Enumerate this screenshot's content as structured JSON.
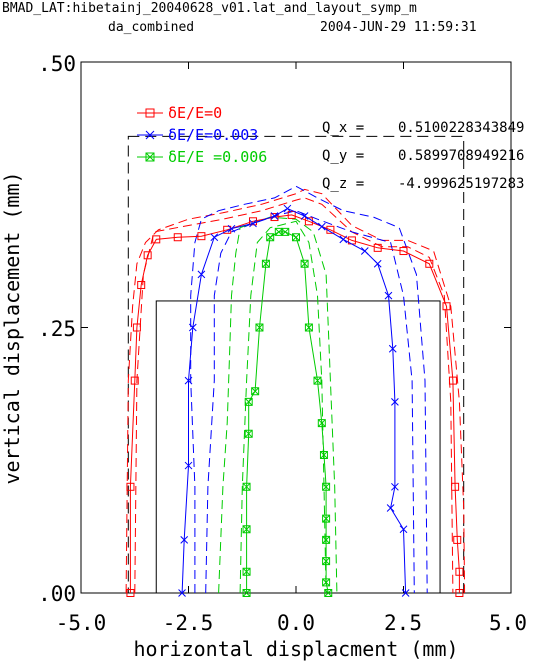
{
  "header": {
    "line1": "BMAD_LAT:hibetainj_20040628_v01.lat_and_layout_symp_m",
    "subtitle": "da_combined",
    "date": "2004-JUN-29  11:59:31"
  },
  "annotations": [
    {
      "label": "Q_x  =",
      "value": "0.5100228343849"
    },
    {
      "label": "Q_y  =",
      "value": "0.5899708949216"
    },
    {
      "label": "Q_z  =",
      "value": "-4.999625197283"
    }
  ],
  "colors": {
    "red": "#ff0000",
    "blue": "#0000ff",
    "green": "#00cc00",
    "black": "#000000"
  },
  "chart_data": {
    "type": "line",
    "xlabel": "horizontal displacment (mm)",
    "ylabel": "vertical displacement (mm)",
    "xlim": [
      -5.0,
      5.0
    ],
    "ylim": [
      0.0,
      0.5
    ],
    "x_ticks": [
      "-5.0",
      "-2.5",
      "0.0",
      "2.5",
      "5.0"
    ],
    "y_ticks": [
      ".00",
      ".25",
      ".50"
    ],
    "grid": false,
    "legend_position": "top-left",
    "series": [
      {
        "name": "δE/E=0",
        "color": "#ff0000",
        "marker": "square",
        "x": [
          -3.85,
          -3.85,
          -3.75,
          -3.7,
          -3.6,
          -3.45,
          -3.25,
          -2.75,
          -2.2,
          -1.6,
          -1.0,
          -0.5,
          -0.1,
          0.3,
          0.8,
          1.3,
          1.9,
          2.5,
          3.1,
          3.5,
          3.65,
          3.7,
          3.75,
          3.8,
          3.8
        ],
        "y": [
          0.0,
          0.1,
          0.2,
          0.25,
          0.29,
          0.318,
          0.333,
          0.335,
          0.336,
          0.342,
          0.35,
          0.354,
          0.356,
          0.35,
          0.342,
          0.332,
          0.325,
          0.322,
          0.31,
          0.27,
          0.2,
          0.1,
          0.05,
          0.02,
          0.0
        ]
      },
      {
        "name": "δE/E=0.003",
        "color": "#0000ff",
        "marker": "x",
        "x": [
          -2.65,
          -2.6,
          -2.5,
          -2.5,
          -2.4,
          -2.2,
          -1.9,
          -1.5,
          -1.0,
          -0.5,
          -0.2,
          0.2,
          0.6,
          1.1,
          1.6,
          1.9,
          2.15,
          2.25,
          2.3,
          2.3,
          2.2,
          2.5,
          2.55
        ],
        "y": [
          0.0,
          0.05,
          0.12,
          0.2,
          0.25,
          0.3,
          0.335,
          0.343,
          0.348,
          0.355,
          0.362,
          0.355,
          0.345,
          0.333,
          0.322,
          0.31,
          0.28,
          0.23,
          0.18,
          0.1,
          0.08,
          0.06,
          0.0
        ]
      },
      {
        "name": "δE/E =0.006",
        "color": "#00cc00",
        "marker": "boxed-x",
        "x": [
          -1.15,
          -1.15,
          -1.15,
          -1.15,
          -1.1,
          -1.1,
          -0.95,
          -0.85,
          -0.7,
          -0.6,
          -0.4,
          -0.25,
          0.0,
          0.2,
          0.3,
          0.5,
          0.6,
          0.65,
          0.7,
          0.7,
          0.7,
          0.7,
          0.7,
          0.75
        ],
        "y": [
          0.0,
          0.02,
          0.06,
          0.1,
          0.15,
          0.18,
          0.19,
          0.25,
          0.31,
          0.335,
          0.34,
          0.34,
          0.335,
          0.31,
          0.25,
          0.2,
          0.16,
          0.13,
          0.1,
          0.07,
          0.05,
          0.03,
          0.01,
          0.0
        ]
      }
    ],
    "dashed_series": [
      {
        "color": "#ff0000",
        "x": [
          -3.95,
          -3.9,
          -3.8,
          -3.7,
          -3.5,
          -3.2,
          -2.5,
          -1.7,
          -0.8,
          0.0,
          0.2,
          0.6,
          1.3,
          2.0,
          2.6,
          3.2,
          3.6,
          3.8,
          3.9,
          3.92
        ],
        "y": [
          0.0,
          0.2,
          0.27,
          0.31,
          0.33,
          0.342,
          0.352,
          0.358,
          0.366,
          0.376,
          0.38,
          0.376,
          0.346,
          0.332,
          0.332,
          0.322,
          0.27,
          0.18,
          0.08,
          0.0
        ]
      },
      {
        "color": "#ff0000",
        "x": [
          -3.75,
          -3.7,
          -3.55,
          -3.3,
          -2.5,
          -1.7,
          -0.8,
          0.0,
          0.2,
          0.6,
          1.3,
          2.0,
          2.6,
          3.1,
          3.45,
          3.6,
          3.65
        ],
        "y": [
          0.0,
          0.2,
          0.3,
          0.34,
          0.346,
          0.352,
          0.36,
          0.37,
          0.372,
          0.366,
          0.34,
          0.326,
          0.326,
          0.316,
          0.28,
          0.18,
          0.0
        ]
      },
      {
        "color": "#0000ff",
        "x": [
          -2.35,
          -2.35,
          -2.45,
          -2.45,
          -2.35,
          -2.2,
          -1.8,
          -1.2,
          -0.5,
          0.0,
          0.5,
          1.1,
          1.8,
          2.4,
          2.8,
          3.0,
          3.05
        ],
        "y": [
          0.0,
          0.1,
          0.2,
          0.28,
          0.33,
          0.352,
          0.36,
          0.366,
          0.372,
          0.383,
          0.372,
          0.36,
          0.354,
          0.344,
          0.3,
          0.2,
          0.0
        ]
      },
      {
        "color": "#0000ff",
        "x": [
          -2.1,
          -2.05,
          -1.9,
          -1.9,
          -1.75,
          -1.5,
          -1.0,
          -0.4,
          0.0,
          0.5,
          1.3,
          2.2,
          2.5,
          2.7,
          2.75
        ],
        "y": [
          0.0,
          0.1,
          0.2,
          0.28,
          0.32,
          0.34,
          0.348,
          0.356,
          0.36,
          0.352,
          0.34,
          0.33,
          0.28,
          0.2,
          0.0
        ]
      },
      {
        "color": "#00cc00",
        "x": [
          -1.8,
          -1.7,
          -1.6,
          -1.55,
          -1.5,
          -1.4,
          -1.3,
          -0.6,
          0.0,
          0.4,
          0.7,
          0.75,
          0.8,
          0.9,
          0.95
        ],
        "y": [
          0.0,
          0.1,
          0.16,
          0.22,
          0.28,
          0.32,
          0.344,
          0.354,
          0.352,
          0.34,
          0.3,
          0.25,
          0.2,
          0.1,
          0.0
        ]
      },
      {
        "color": "#00cc00",
        "x": [
          -1.3,
          -1.25,
          -1.15,
          -1.05,
          -0.9,
          -0.6,
          0.0,
          0.3,
          0.5,
          0.6,
          0.65,
          0.7
        ],
        "y": [
          0.0,
          0.1,
          0.2,
          0.28,
          0.33,
          0.344,
          0.35,
          0.33,
          0.28,
          0.2,
          0.1,
          0.0
        ]
      }
    ],
    "boxes": [
      {
        "style": "dashed",
        "x": [
          -3.9,
          3.9
        ],
        "y": [
          0.0,
          0.43
        ]
      },
      {
        "style": "solid",
        "x": [
          -3.25,
          3.35
        ],
        "y": [
          0.0,
          0.275
        ]
      }
    ]
  }
}
